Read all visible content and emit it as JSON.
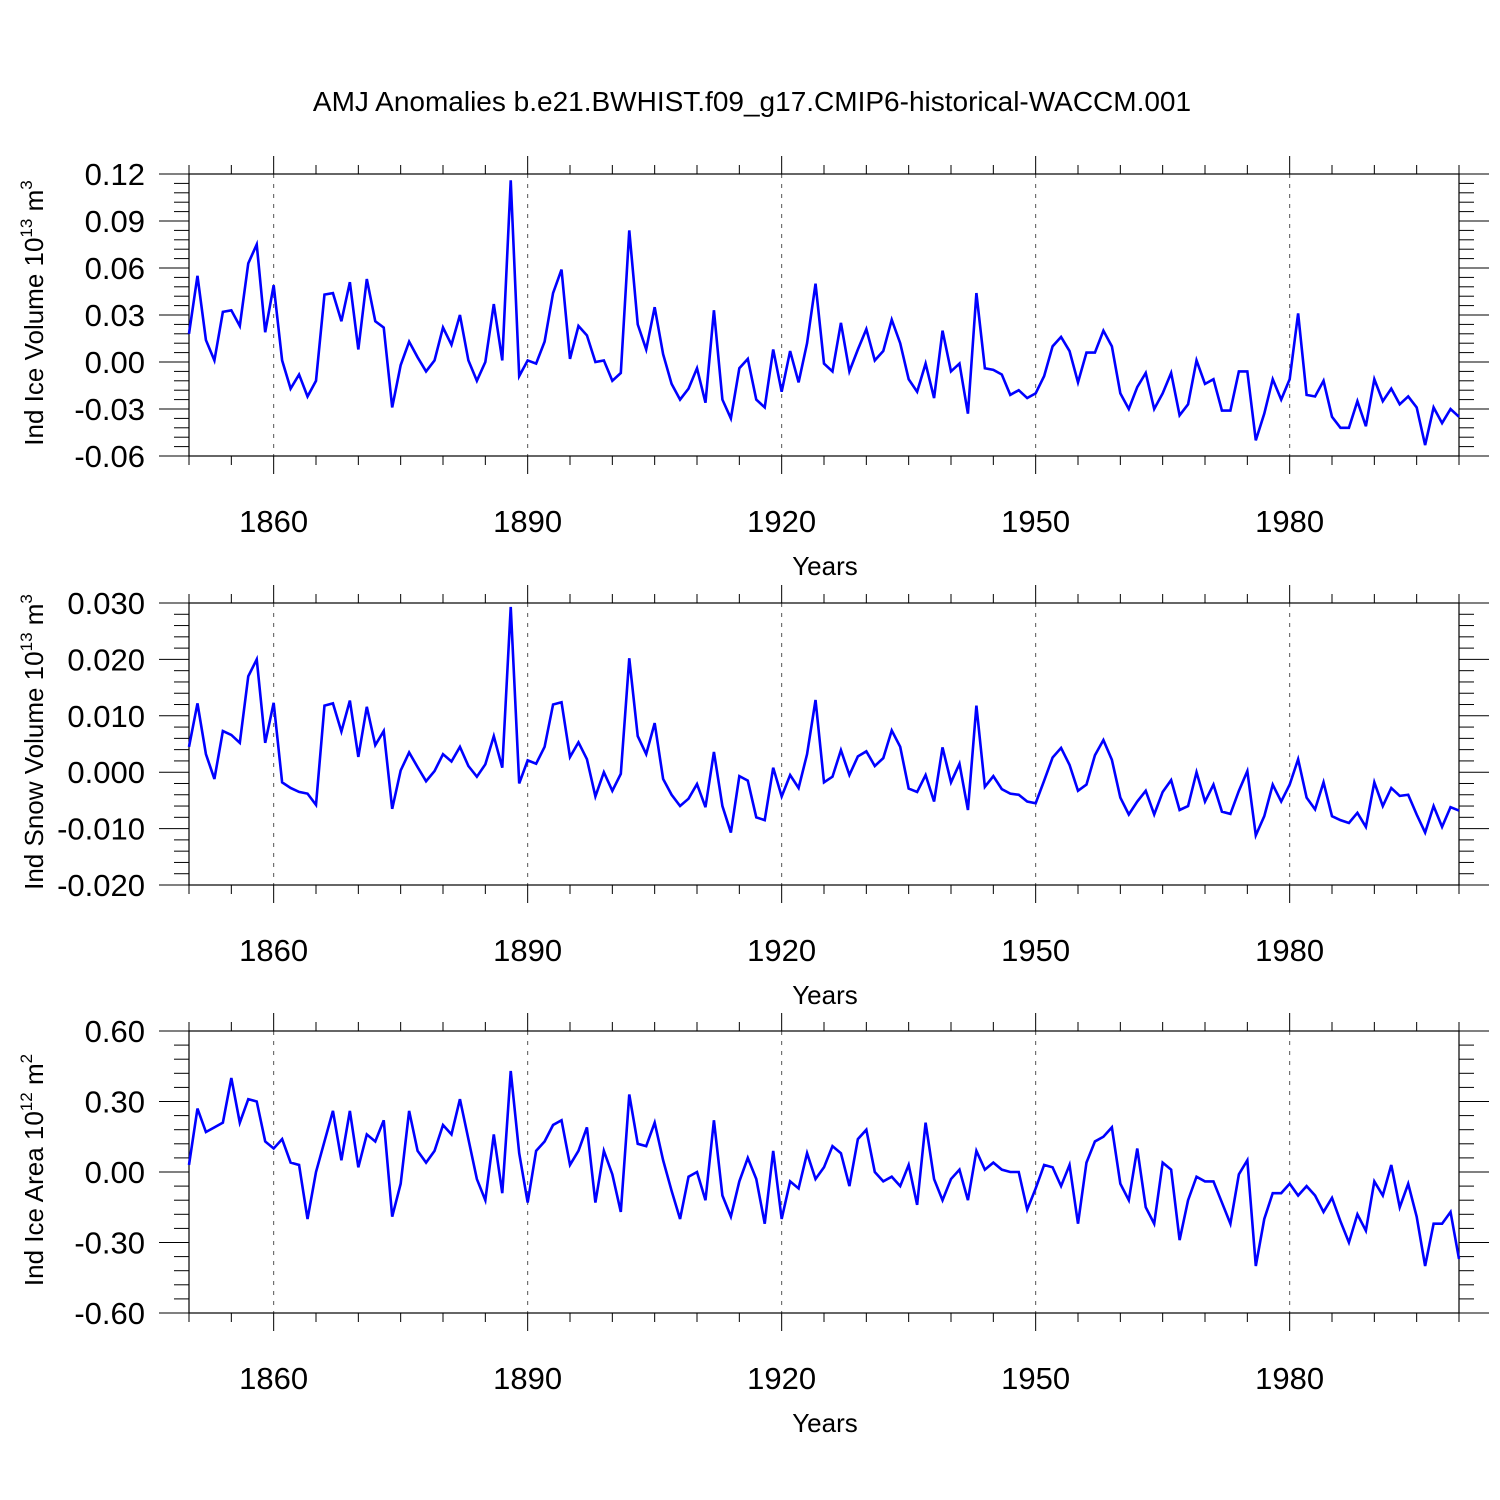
{
  "title": "AMJ Anomalies b.e21.BWHIST.f09_g17.CMIP6-historical-WACCM.001",
  "line_color": "#0000ff",
  "chart_data": [
    {
      "type": "line",
      "ylabel": "Ind Ice Volume 10",
      "ylabel_exp": "13",
      "ylabel_unit": " m",
      "ylabel_unit_exp": "3",
      "xlabel": "Years",
      "ylim": [
        -0.06,
        0.12
      ],
      "yticks": [
        "0.12",
        "0.09",
        "0.06",
        "0.03",
        "0.00",
        "-0.03",
        "-0.06"
      ],
      "ytick_values": [
        0.12,
        0.09,
        0.06,
        0.03,
        0.0,
        -0.03,
        -0.06
      ],
      "xlim": [
        1850,
        2000
      ],
      "xticks": [
        "1860",
        "1890",
        "1920",
        "1950",
        "1980"
      ],
      "xtick_values": [
        1860,
        1890,
        1920,
        1950,
        1980
      ],
      "grid": "dashed vertical at major x ticks",
      "series": [
        {
          "x_start": 1850,
          "values": [
            0.018,
            0.055,
            0.014,
            0.001,
            0.032,
            0.033,
            0.023,
            0.063,
            0.075,
            0.019,
            0.049,
            0.001,
            -0.017,
            -0.008,
            -0.022,
            -0.012,
            0.043,
            0.044,
            0.026,
            0.051,
            0.008,
            0.053,
            0.026,
            0.022,
            -0.029,
            -0.002,
            0.013,
            0.003,
            -0.006,
            0.001,
            0.022,
            0.011,
            0.03,
            0.001,
            -0.012,
            0.0,
            0.037,
            0.001,
            0.116,
            -0.009,
            0.001,
            -0.001,
            0.013,
            0.044,
            0.059,
            0.002,
            0.023,
            0.017,
            0.0,
            0.001,
            -0.012,
            -0.007,
            0.084,
            0.024,
            0.008,
            0.035,
            0.005,
            -0.014,
            -0.024,
            -0.017,
            -0.004,
            -0.026,
            0.033,
            -0.024,
            -0.036,
            -0.004,
            0.002,
            -0.024,
            -0.029,
            0.008,
            -0.019,
            0.007,
            -0.013,
            0.012,
            0.05,
            -0.001,
            -0.006,
            0.025,
            -0.006,
            0.008,
            0.021,
            0.001,
            0.007,
            0.027,
            0.012,
            -0.011,
            -0.019,
            -0.001,
            -0.023,
            0.02,
            -0.006,
            -0.001,
            -0.033,
            0.044,
            -0.004,
            -0.005,
            -0.008,
            -0.021,
            -0.018,
            -0.023,
            -0.02,
            -0.009,
            0.01,
            0.016,
            0.007,
            -0.013,
            0.006,
            0.006,
            0.02,
            0.01,
            -0.02,
            -0.03,
            -0.016,
            -0.007,
            -0.03,
            -0.02,
            -0.007,
            -0.034,
            -0.027,
            0.001,
            -0.014,
            -0.011,
            -0.031,
            -0.031,
            -0.006,
            -0.006,
            -0.05,
            -0.033,
            -0.011,
            -0.024,
            -0.011,
            0.031,
            -0.021,
            -0.022,
            -0.012,
            -0.035,
            -0.042,
            -0.042,
            -0.025,
            -0.041,
            -0.011,
            -0.025,
            -0.017,
            -0.027,
            -0.022,
            -0.029,
            -0.053,
            -0.029,
            -0.039,
            -0.03,
            -0.035
          ]
        }
      ]
    },
    {
      "type": "line",
      "ylabel": "Ind Snow Volume 10",
      "ylabel_exp": "13",
      "ylabel_unit": " m",
      "ylabel_unit_exp": "3",
      "xlabel": "Years",
      "ylim": [
        -0.02,
        0.03
      ],
      "yticks": [
        "0.030",
        "0.020",
        "0.010",
        "0.000",
        "-0.010",
        "-0.020"
      ],
      "ytick_values": [
        0.03,
        0.02,
        0.01,
        0.0,
        -0.01,
        -0.02
      ],
      "xlim": [
        1850,
        2000
      ],
      "xticks": [
        "1860",
        "1890",
        "1920",
        "1950",
        "1980"
      ],
      "xtick_values": [
        1860,
        1890,
        1920,
        1950,
        1980
      ],
      "grid": "dashed vertical at major x ticks",
      "series": [
        {
          "x_start": 1850,
          "values": [
            0.0045,
            0.0122,
            0.0032,
            -0.0012,
            0.0073,
            0.0066,
            0.0052,
            0.017,
            0.02,
            0.0052,
            0.0123,
            -0.0018,
            -0.0028,
            -0.0035,
            -0.0038,
            -0.0058,
            0.0118,
            0.0122,
            0.0072,
            0.0127,
            0.0027,
            0.0116,
            0.0048,
            0.0073,
            -0.0065,
            0.0003,
            0.0035,
            0.0009,
            -0.0016,
            0.0002,
            0.0032,
            0.0019,
            0.0045,
            0.0011,
            -0.0008,
            0.0014,
            0.0064,
            0.0008,
            0.0293,
            -0.002,
            0.0021,
            0.0015,
            0.0045,
            0.012,
            0.0124,
            0.0027,
            0.0053,
            0.0023,
            -0.0043,
            0.0,
            -0.0033,
            -0.0003,
            0.0202,
            0.0064,
            0.0032,
            0.0087,
            -0.0012,
            -0.004,
            -0.006,
            -0.0047,
            -0.0021,
            -0.0062,
            0.0036,
            -0.006,
            -0.0107,
            -0.0007,
            -0.0015,
            -0.008,
            -0.0085,
            0.0008,
            -0.0043,
            -0.0005,
            -0.0028,
            0.0032,
            0.0128,
            -0.0018,
            -0.0008,
            0.0039,
            -0.0005,
            0.0028,
            0.0037,
            0.0011,
            0.0025,
            0.0074,
            0.0045,
            -0.0029,
            -0.0035,
            -0.0005,
            -0.0052,
            0.0044,
            -0.0018,
            0.0015,
            -0.0067,
            0.0118,
            -0.0026,
            -0.0007,
            -0.003,
            -0.0038,
            -0.004,
            -0.0052,
            -0.0055,
            -0.0015,
            0.0026,
            0.0043,
            0.0013,
            -0.0033,
            -0.0022,
            0.003,
            0.0057,
            0.0022,
            -0.0045,
            -0.0075,
            -0.0052,
            -0.0033,
            -0.0075,
            -0.0035,
            -0.0014,
            -0.0067,
            -0.006,
            0.0,
            -0.0052,
            -0.0022,
            -0.007,
            -0.0074,
            -0.0033,
            0.0002,
            -0.0112,
            -0.0078,
            -0.0022,
            -0.0052,
            -0.0022,
            0.0023,
            -0.0045,
            -0.0066,
            -0.0018,
            -0.0078,
            -0.0085,
            -0.009,
            -0.0072,
            -0.0097,
            -0.0018,
            -0.006,
            -0.0028,
            -0.0042,
            -0.004,
            -0.0075,
            -0.0107,
            -0.006,
            -0.0097,
            -0.0062,
            -0.0068
          ]
        }
      ]
    },
    {
      "type": "line",
      "ylabel": "Ind Ice Area 10",
      "ylabel_exp": "12",
      "ylabel_unit": " m",
      "ylabel_unit_exp": "2",
      "xlabel": "Years",
      "ylim": [
        -0.6,
        0.6
      ],
      "yticks": [
        "0.60",
        "0.30",
        "0.00",
        "-0.30",
        "-0.60"
      ],
      "ytick_values": [
        0.6,
        0.3,
        0.0,
        -0.3,
        -0.6
      ],
      "xlim": [
        1850,
        2000
      ],
      "xticks": [
        "1860",
        "1890",
        "1920",
        "1950",
        "1980"
      ],
      "xtick_values": [
        1860,
        1890,
        1920,
        1950,
        1980
      ],
      "grid": "dashed vertical at major x ticks",
      "series": [
        {
          "x_start": 1850,
          "values": [
            0.03,
            0.27,
            0.17,
            0.19,
            0.21,
            0.4,
            0.21,
            0.31,
            0.3,
            0.13,
            0.1,
            0.14,
            0.04,
            0.03,
            -0.2,
            0.0,
            0.13,
            0.26,
            0.05,
            0.26,
            0.02,
            0.16,
            0.13,
            0.22,
            -0.19,
            -0.05,
            0.26,
            0.09,
            0.04,
            0.09,
            0.2,
            0.16,
            0.31,
            0.14,
            -0.03,
            -0.12,
            0.16,
            -0.09,
            0.43,
            0.08,
            -0.13,
            0.09,
            0.13,
            0.2,
            0.22,
            0.03,
            0.09,
            0.19,
            -0.13,
            0.09,
            -0.01,
            -0.17,
            0.33,
            0.12,
            0.11,
            0.21,
            0.05,
            -0.08,
            -0.2,
            -0.02,
            0.0,
            -0.12,
            0.22,
            -0.1,
            -0.19,
            -0.04,
            0.06,
            -0.03,
            -0.22,
            0.09,
            -0.2,
            -0.04,
            -0.07,
            0.08,
            -0.03,
            0.02,
            0.11,
            0.08,
            -0.06,
            0.14,
            0.18,
            0.0,
            -0.04,
            -0.02,
            -0.06,
            0.03,
            -0.14,
            0.21,
            -0.03,
            -0.12,
            -0.03,
            0.01,
            -0.12,
            0.09,
            0.01,
            0.04,
            0.01,
            0.0,
            0.0,
            -0.16,
            -0.07,
            0.03,
            0.02,
            -0.06,
            0.03,
            -0.22,
            0.04,
            0.13,
            0.15,
            0.19,
            -0.05,
            -0.12,
            0.1,
            -0.15,
            -0.22,
            0.04,
            0.01,
            -0.29,
            -0.12,
            -0.02,
            -0.04,
            -0.04,
            -0.13,
            -0.22,
            -0.01,
            0.05,
            -0.4,
            -0.2,
            -0.09,
            -0.09,
            -0.05,
            -0.1,
            -0.06,
            -0.1,
            -0.17,
            -0.11,
            -0.21,
            -0.3,
            -0.18,
            -0.25,
            -0.04,
            -0.1,
            0.03,
            -0.15,
            -0.05,
            -0.19,
            -0.4,
            -0.22,
            -0.22,
            -0.17,
            -0.37
          ]
        }
      ]
    }
  ]
}
